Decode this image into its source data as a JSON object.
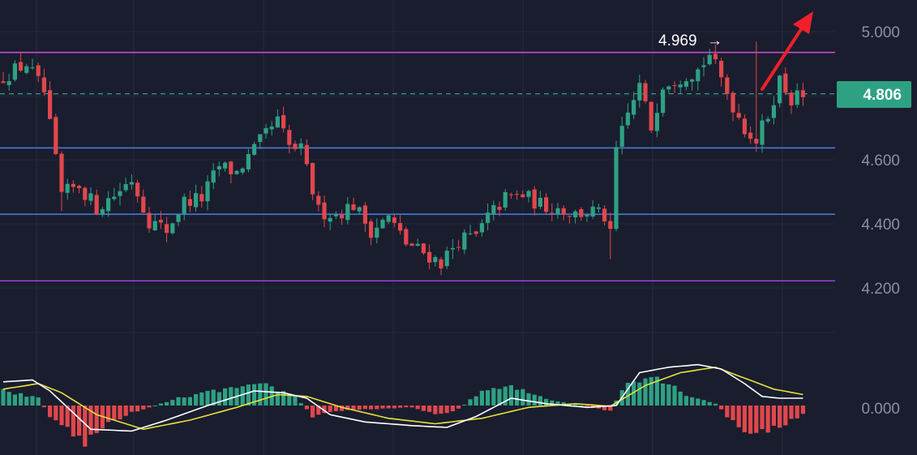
{
  "chart_data": [
    {
      "type": "candlestick",
      "title": "",
      "y_axis": {
        "position": "right",
        "ticks": [
          "5.000",
          "4.800",
          "4.600",
          "4.400",
          "4.200"
        ],
        "tick_values": [
          5.0,
          4.8,
          4.6,
          4.4,
          4.2
        ],
        "range": [
          4.1,
          5.08
        ]
      },
      "current_price": {
        "label": "4.806",
        "value": 4.806,
        "color": "#2ea183"
      },
      "high_annotation": {
        "label": "4.969",
        "value": 4.969
      },
      "horizontal_levels": [
        {
          "value": 4.935,
          "color": "#d64fd6"
        },
        {
          "value": 4.637,
          "color": "#4a7fe0"
        },
        {
          "value": 4.43,
          "color": "#4a7fe0"
        },
        {
          "value": 4.222,
          "color": "#a040d8"
        }
      ],
      "trend_arrow": {
        "color": "#f0202a",
        "direction": "up-right"
      },
      "colors": {
        "up": "#2ea183",
        "down": "#e0474c"
      },
      "close_path": [
        [
          0,
          4.86
        ],
        [
          4,
          4.9
        ],
        [
          7,
          4.81
        ],
        [
          10,
          4.49
        ],
        [
          13,
          4.52
        ],
        [
          16,
          4.45
        ],
        [
          19,
          4.49
        ],
        [
          22,
          4.54
        ],
        [
          25,
          4.41
        ],
        [
          28,
          4.38
        ],
        [
          31,
          4.47
        ],
        [
          34,
          4.48
        ],
        [
          37,
          4.58
        ],
        [
          40,
          4.56
        ],
        [
          43,
          4.63
        ],
        [
          45,
          4.68
        ],
        [
          47,
          4.72
        ],
        [
          49,
          4.64
        ],
        [
          51,
          4.63
        ],
        [
          54,
          4.44
        ],
        [
          57,
          4.43
        ],
        [
          60,
          4.46
        ],
        [
          63,
          4.38
        ],
        [
          66,
          4.42
        ],
        [
          69,
          4.34
        ],
        [
          72,
          4.31
        ],
        [
          75,
          4.28
        ],
        [
          78,
          4.35
        ],
        [
          81,
          4.36
        ],
        [
          83,
          4.42
        ],
        [
          86,
          4.48
        ],
        [
          89,
          4.49
        ],
        [
          92,
          4.46
        ],
        [
          95,
          4.45
        ],
        [
          98,
          4.43
        ],
        [
          101,
          4.44
        ],
        [
          103,
          4.42
        ],
        [
          104,
          4.36
        ],
        [
          105,
          4.63
        ],
        [
          107,
          4.74
        ],
        [
          109,
          4.83
        ],
        [
          111,
          4.7
        ],
        [
          113,
          4.84
        ],
        [
          116,
          4.86
        ],
        [
          119,
          4.88
        ],
        [
          121,
          4.93
        ],
        [
          123,
          4.85
        ],
        [
          125,
          4.77
        ],
        [
          127,
          4.7
        ],
        [
          129,
          4.66
        ],
        [
          131,
          4.74
        ],
        [
          133,
          4.85
        ],
        [
          135,
          4.79
        ],
        [
          137,
          4.8
        ]
      ]
    },
    {
      "type": "macd",
      "y_axis": {
        "ticks": [
          "0.000"
        ],
        "tick_values": [
          0.0
        ]
      },
      "histogram_colors": {
        "positive": "#2ea183",
        "negative": "#e0474c"
      },
      "line_colors": {
        "macd": "#ffffff",
        "signal": "#e8e23a"
      },
      "histogram_path": [
        [
          0,
          0.4
        ],
        [
          6,
          0.2
        ],
        [
          8,
          -0.3
        ],
        [
          14,
          -1.0
        ],
        [
          17,
          -0.6
        ],
        [
          21,
          -0.25
        ],
        [
          26,
          0.0
        ],
        [
          30,
          0.2
        ],
        [
          38,
          0.45
        ],
        [
          45,
          0.55
        ],
        [
          50,
          0.25
        ],
        [
          53,
          -0.3
        ],
        [
          57,
          -0.15
        ],
        [
          62,
          -0.1
        ],
        [
          70,
          -0.05
        ],
        [
          75,
          -0.25
        ],
        [
          78,
          -0.1
        ],
        [
          82,
          0.4
        ],
        [
          87,
          0.5
        ],
        [
          94,
          0.15
        ],
        [
          99,
          0.0
        ],
        [
          104,
          -0.15
        ],
        [
          107,
          0.7
        ],
        [
          112,
          0.8
        ],
        [
          117,
          0.3
        ],
        [
          122,
          0.05
        ],
        [
          125,
          -0.45
        ],
        [
          128,
          -0.85
        ],
        [
          133,
          -0.55
        ],
        [
          137,
          -0.25
        ]
      ],
      "macd_path": [
        [
          0,
          0.65
        ],
        [
          5,
          0.7
        ],
        [
          8,
          0.4
        ],
        [
          15,
          -0.65
        ],
        [
          22,
          -0.7
        ],
        [
          28,
          -0.4
        ],
        [
          35,
          0.0
        ],
        [
          43,
          0.4
        ],
        [
          48,
          0.35
        ],
        [
          52,
          0.2
        ],
        [
          56,
          -0.25
        ],
        [
          62,
          -0.45
        ],
        [
          70,
          -0.55
        ],
        [
          76,
          -0.6
        ],
        [
          81,
          -0.3
        ],
        [
          87,
          0.2
        ],
        [
          93,
          0.05
        ],
        [
          100,
          -0.05
        ],
        [
          105,
          0.0
        ],
        [
          109,
          0.9
        ],
        [
          114,
          1.05
        ],
        [
          119,
          1.12
        ],
        [
          123,
          1.0
        ],
        [
          127,
          0.6
        ],
        [
          130,
          0.25
        ],
        [
          133,
          0.2
        ],
        [
          137,
          0.2
        ]
      ],
      "signal_path": [
        [
          0,
          0.45
        ],
        [
          6,
          0.6
        ],
        [
          10,
          0.35
        ],
        [
          16,
          -0.25
        ],
        [
          24,
          -0.65
        ],
        [
          32,
          -0.4
        ],
        [
          40,
          -0.05
        ],
        [
          47,
          0.3
        ],
        [
          52,
          0.25
        ],
        [
          58,
          -0.05
        ],
        [
          66,
          -0.35
        ],
        [
          74,
          -0.5
        ],
        [
          82,
          -0.35
        ],
        [
          90,
          -0.05
        ],
        [
          98,
          0.05
        ],
        [
          104,
          -0.02
        ],
        [
          110,
          0.55
        ],
        [
          116,
          0.9
        ],
        [
          122,
          1.05
        ],
        [
          127,
          0.75
        ],
        [
          132,
          0.45
        ],
        [
          137,
          0.3
        ]
      ]
    }
  ]
}
